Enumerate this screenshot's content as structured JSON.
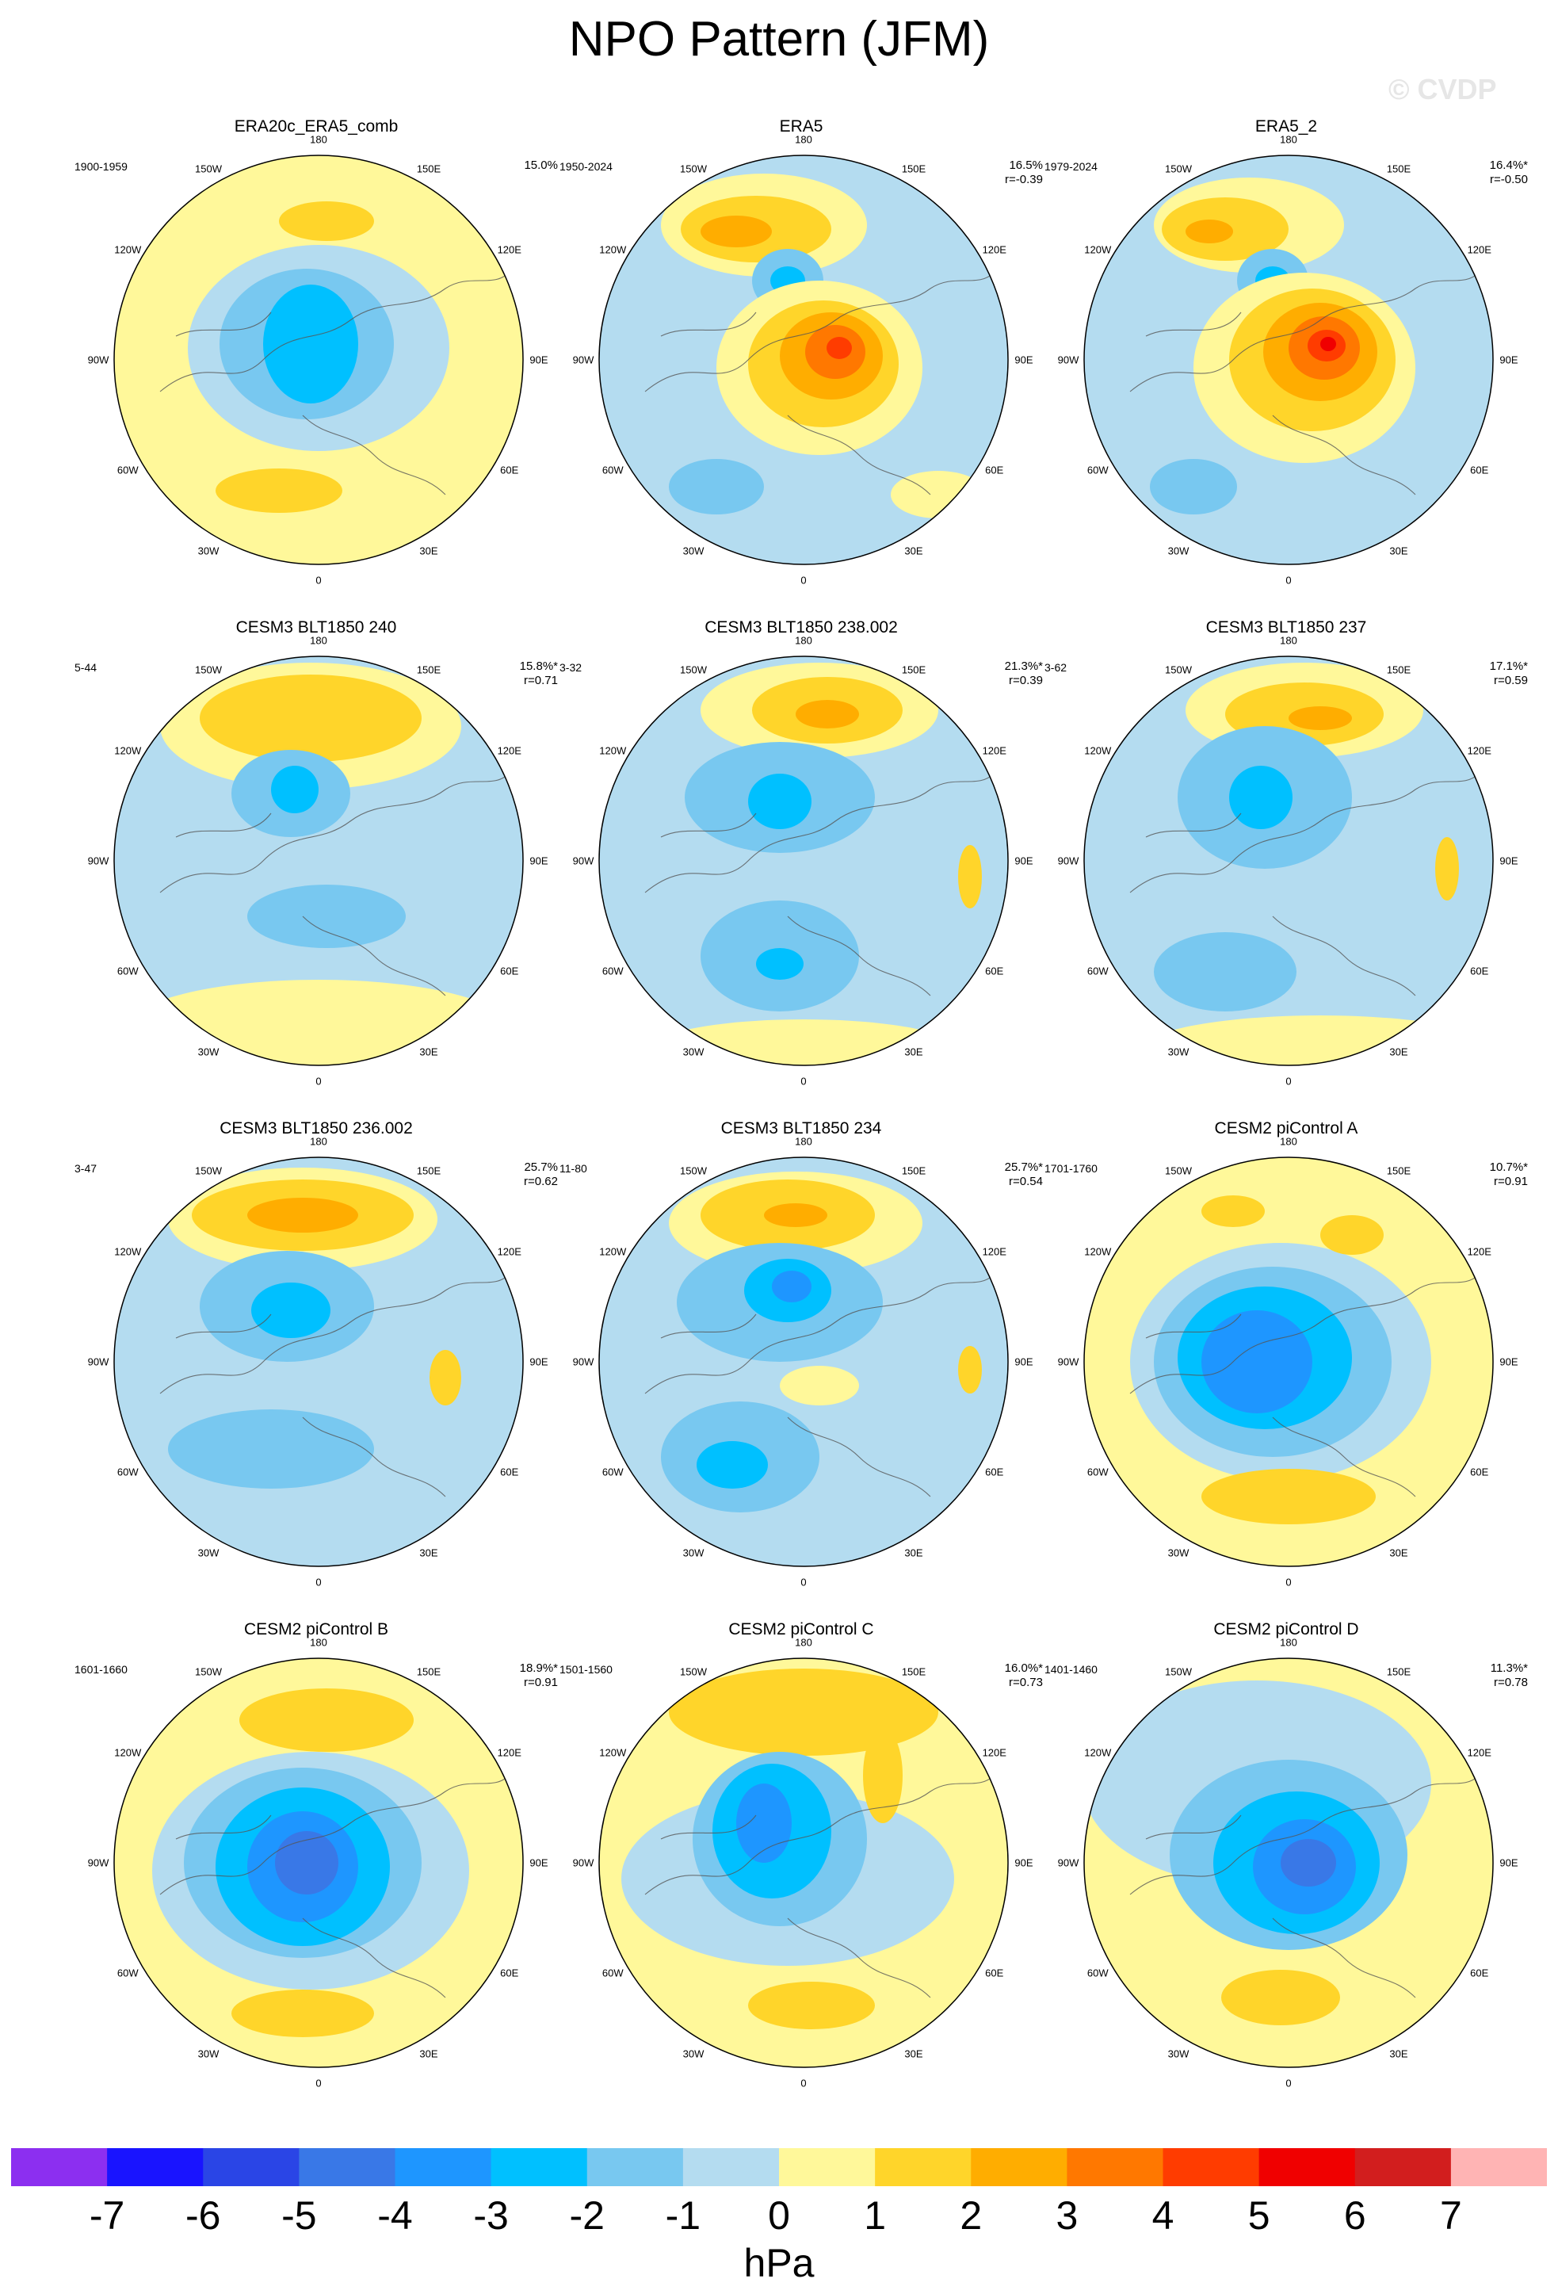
{
  "title": "NPO Pattern (JFM)",
  "watermark": "© CVDP",
  "units": "hPa",
  "colorbar": {
    "labels": [
      "-7",
      "-6",
      "-5",
      "-4",
      "-3",
      "-2",
      "-1",
      "0",
      "1",
      "2",
      "3",
      "4",
      "5",
      "6",
      "7"
    ],
    "colors": [
      "#8c2ff0",
      "#1914ff",
      "#2a45e6",
      "#3978e7",
      "#1e96ff",
      "#00c0ff",
      "#78c8f0",
      "#b4dcf0",
      "#fff89a",
      "#ffd52a",
      "#ffad00",
      "#ff7800",
      "#ff3c00",
      "#f00000",
      "#d21e1e",
      "#ffb4b4"
    ]
  },
  "map_labels": {
    "top": "180",
    "bottom": "0",
    "left": "90W",
    "right": "90E",
    "upper_left_1": "150W",
    "upper_left_2": "120W",
    "lower_left_1": "60W",
    "lower_left_2": "30W",
    "upper_right_1": "150E",
    "upper_right_2": "120E",
    "lower_right_1": "60E",
    "lower_right_2": "30E"
  },
  "panels": [
    {
      "title": "ERA20c_ERA5_comb",
      "period": "1900-1959",
      "pct": "15.0%",
      "corr": ""
    },
    {
      "title": "ERA5",
      "period": "1950-2024",
      "pct": "16.5%",
      "corr": "r=-0.39"
    },
    {
      "title": "ERA5_2",
      "period": "1979-2024",
      "pct": "16.4%*",
      "corr": "r=-0.50"
    },
    {
      "title": "CESM3 BLT1850 240",
      "period": "5-44",
      "pct": "15.8%*",
      "corr": "r=0.71"
    },
    {
      "title": "CESM3 BLT1850 238.002",
      "period": "3-32",
      "pct": "21.3%*",
      "corr": "r=0.39"
    },
    {
      "title": "CESM3 BLT1850 237",
      "period": "3-62",
      "pct": "17.1%*",
      "corr": "r=0.59"
    },
    {
      "title": "CESM3 BLT1850 236.002",
      "period": "3-47",
      "pct": "25.7%",
      "corr": "r=0.62"
    },
    {
      "title": "CESM3 BLT1850 234",
      "period": "11-80",
      "pct": "25.7%*",
      "corr": "r=0.54"
    },
    {
      "title": "CESM2 piControl A",
      "period": "1701-1760",
      "pct": "10.7%*",
      "corr": "r=0.91"
    },
    {
      "title": "CESM2 piControl B",
      "period": "1601-1660",
      "pct": "18.9%*",
      "corr": "r=0.91"
    },
    {
      "title": "CESM2 piControl C",
      "period": "1501-1560",
      "pct": "16.0%*",
      "corr": "r=0.73"
    },
    {
      "title": "CESM2 piControl D",
      "period": "1401-1460",
      "pct": "11.3%*",
      "corr": "r=0.78"
    }
  ]
}
